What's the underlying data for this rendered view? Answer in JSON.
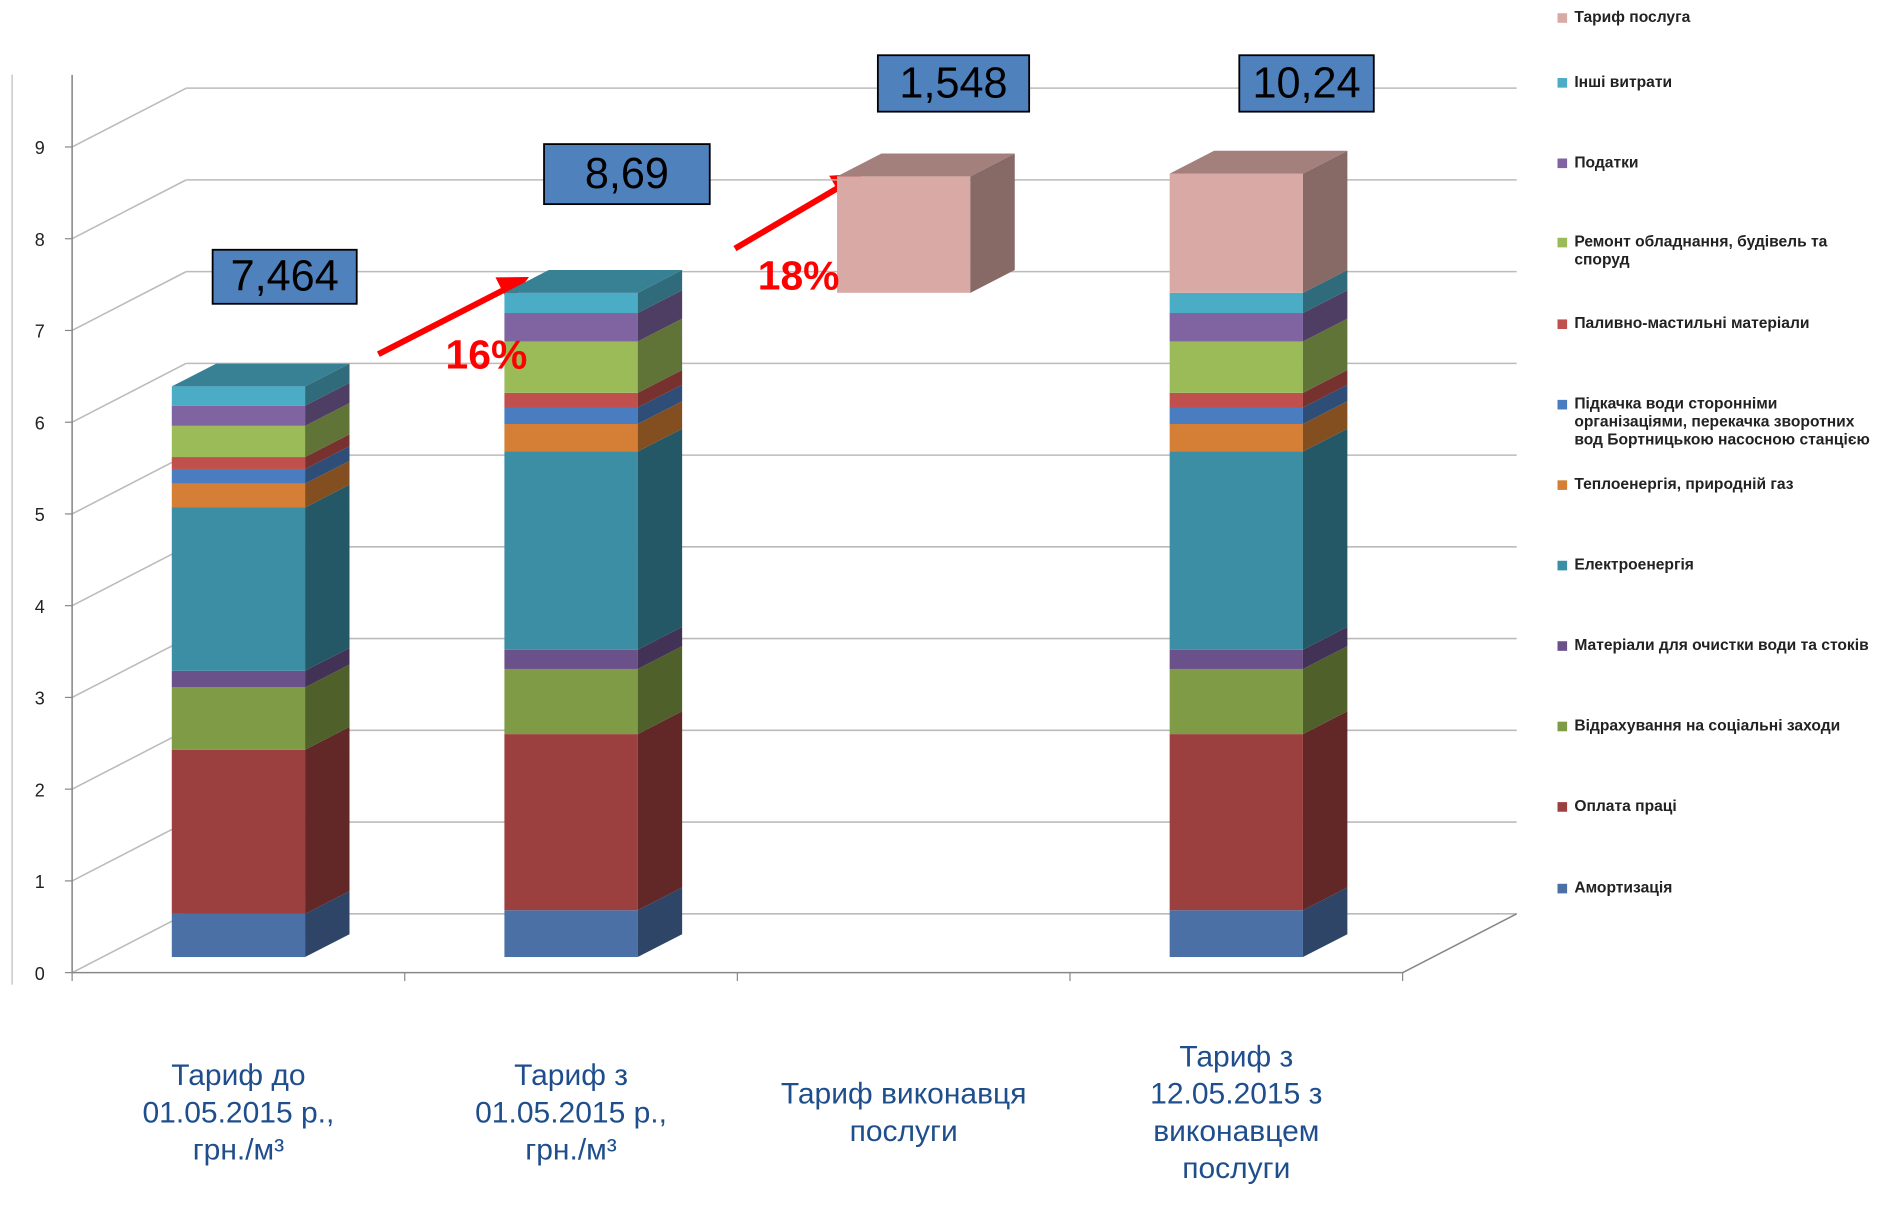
{
  "chart_data": {
    "type": "bar3d-stacked",
    "categories": [
      "Тариф до 01.05.2015 р., грн./м³",
      "Тариф з 01.05.2015 р., грн./м³",
      "Тариф виконавця послуги",
      "Тариф з 12.05.2015 з виконавцем послуги"
    ],
    "ylim": [
      0,
      9
    ],
    "yticks": [
      0,
      1,
      2,
      3,
      4,
      5,
      6,
      7,
      8,
      9
    ],
    "grid": true,
    "legend": "right",
    "series": [
      {
        "name": "Амортизація",
        "color": "#4a70a6",
        "values": [
          0.47,
          0.51,
          null,
          0.51
        ]
      },
      {
        "name": "Оплата праці",
        "color": "#9c403f",
        "values": [
          1.79,
          1.92,
          null,
          1.92
        ]
      },
      {
        "name": "Відрахування на соціальні заходи",
        "color": "#7f9b46",
        "values": [
          0.68,
          0.71,
          null,
          0.71
        ]
      },
      {
        "name": "Матеріали для очистки води та стоків",
        "color": "#6b5189",
        "values": [
          0.18,
          0.21,
          null,
          0.21
        ]
      },
      {
        "name": "Електроенергія",
        "color": "#3b8ea4",
        "values": [
          1.78,
          2.16,
          null,
          2.16
        ]
      },
      {
        "name": "Теплоенергія, природній газ",
        "color": "#d47f35",
        "values": [
          0.26,
          0.3,
          null,
          0.3
        ]
      },
      {
        "name": "Підкачка води сторонніми організаціями, перекачка зворотних вод Бортницькою насосною станцією",
        "color": "#4a7cc0",
        "values": [
          0.16,
          0.18,
          null,
          0.18
        ]
      },
      {
        "name": "Паливно-мастильні матеріали",
        "color": "#c0504d",
        "values": [
          0.13,
          0.16,
          null,
          0.16
        ]
      },
      {
        "name": "Ремонт обладнання, будівель та споруд",
        "color": "#9bbb59",
        "values": [
          0.34,
          0.56,
          null,
          0.56
        ]
      },
      {
        "name": "Податки",
        "color": "#8064a2",
        "values": [
          0.22,
          0.31,
          null,
          0.31
        ]
      },
      {
        "name": "Інші витрати",
        "color": "#4bacc6",
        "values": [
          0.21,
          0.22,
          null,
          0.22
        ]
      },
      {
        "name": "Тариф послуга",
        "color": "#d9aaa5",
        "values": [
          0,
          0,
          1.27,
          1.3
        ]
      }
    ],
    "annotations": [
      {
        "text": "7,464"
      },
      {
        "text": "8,69"
      },
      {
        "text": "1,548"
      },
      {
        "text": "10,24"
      },
      {
        "text": "16%"
      },
      {
        "text": "18%"
      }
    ]
  }
}
